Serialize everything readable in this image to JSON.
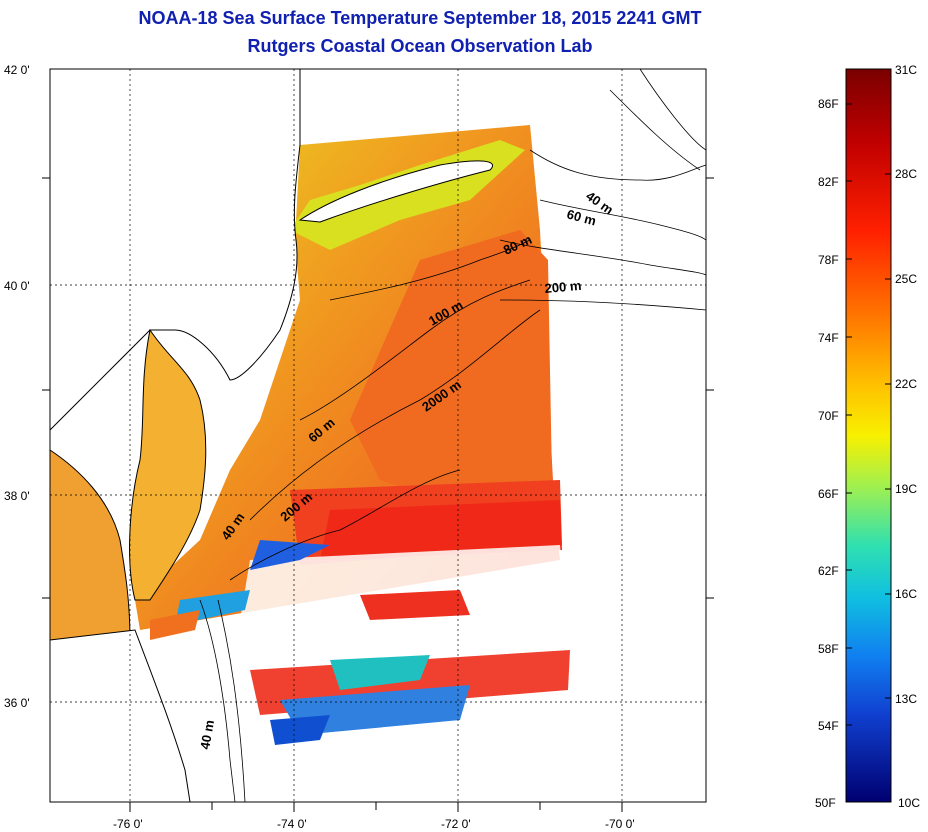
{
  "title": {
    "line1": "NOAA-18 Sea Surface Temperature September 18, 2015 2241 GMT",
    "line2": "Rutgers Coastal Ocean Observation Lab"
  },
  "map": {
    "lat_labels": [
      "42 0'",
      "40 0'",
      "38 0'",
      "36 0'"
    ],
    "lon_labels": [
      "-76 0'",
      "-74 0'",
      "-72 0'",
      "-70 0'"
    ],
    "depth_contours": [
      "40 m",
      "60 m",
      "80 m",
      "200 m",
      "100 m",
      "2000 m",
      "60 m",
      "40 m",
      "200 m",
      "40 m"
    ]
  },
  "colorbar": {
    "f_labels": [
      "86F",
      "82F",
      "78F",
      "74F",
      "70F",
      "66F",
      "62F",
      "58F",
      "54F",
      "50F"
    ],
    "c_labels": [
      "31C",
      "28C",
      "25C",
      "22C",
      "19C",
      "16C",
      "13C",
      "10C"
    ],
    "colors": [
      "#7a0000",
      "#d01010",
      "#ff3000",
      "#ff7a00",
      "#ffb000",
      "#ffe600",
      "#c8f040",
      "#60e090",
      "#20d8c8",
      "#10a0f0",
      "#1050e0",
      "#1010a0",
      "#000060"
    ]
  }
}
